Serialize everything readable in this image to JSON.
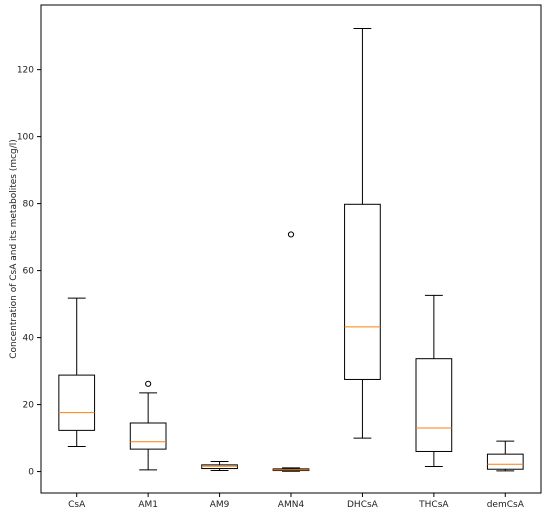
{
  "chart_data": {
    "type": "box",
    "title": "",
    "xlabel": "",
    "ylabel": "Concentration of CsA and its metabolites (mcg/l)",
    "ylim": [
      -6.4,
      139.3
    ],
    "y_ticks": [
      0,
      20,
      40,
      60,
      80,
      100,
      120
    ],
    "grid": false,
    "categories": [
      "CsA",
      "AM1",
      "AM9",
      "AMN4",
      "DHCsA",
      "THCsA",
      "demCsA"
    ],
    "boxes": [
      {
        "label": "CsA",
        "whisker_low": 7.5,
        "q1": 12.3,
        "median": 17.6,
        "q3": 28.8,
        "whisker_high": 51.8,
        "outliers": []
      },
      {
        "label": "AM1",
        "whisker_low": 0.5,
        "q1": 6.7,
        "median": 8.9,
        "q3": 14.5,
        "whisker_high": 23.5,
        "outliers": [
          26.2
        ]
      },
      {
        "label": "AM9",
        "whisker_low": 0.3,
        "q1": 0.9,
        "median": 1.6,
        "q3": 2.0,
        "whisker_high": 3.0,
        "outliers": []
      },
      {
        "label": "AMN4",
        "whisker_low": 0.1,
        "q1": 0.3,
        "median": 0.5,
        "q3": 0.8,
        "whisker_high": 1.1,
        "outliers": [
          70.8
        ]
      },
      {
        "label": "DHCsA",
        "whisker_low": 10.0,
        "q1": 27.5,
        "median": 43.2,
        "q3": 79.8,
        "whisker_high": 132.3,
        "outliers": []
      },
      {
        "label": "THCsA",
        "whisker_low": 1.5,
        "q1": 6.0,
        "median": 13.0,
        "q3": 33.7,
        "whisker_high": 52.6,
        "outliers": []
      },
      {
        "label": "demCsA",
        "whisker_low": 0.2,
        "q1": 0.7,
        "median": 2.2,
        "q3": 5.2,
        "whisker_high": 9.1,
        "outliers": []
      }
    ],
    "colors": {
      "box": "#000000",
      "median": "#ff7f0e",
      "axes": "#000000",
      "text": "#222222"
    }
  }
}
